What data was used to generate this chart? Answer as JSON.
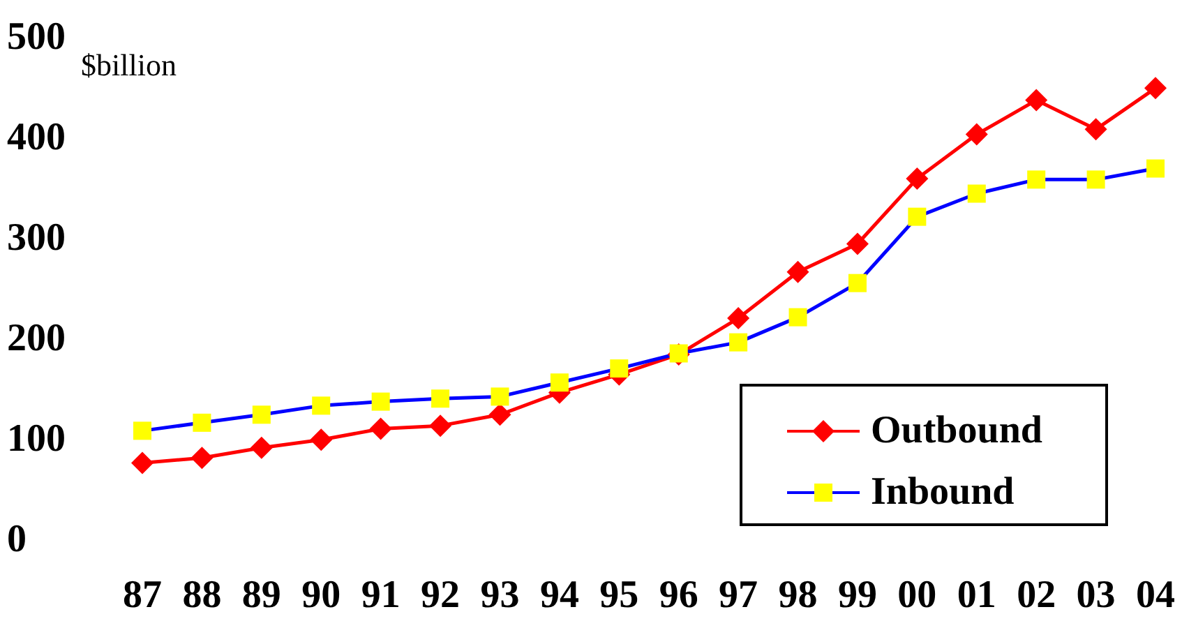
{
  "chart_data": {
    "type": "line",
    "ylabel": "$billion",
    "categories": [
      "87",
      "88",
      "89",
      "90",
      "91",
      "92",
      "93",
      "94",
      "95",
      "96",
      "97",
      "98",
      "99",
      "00",
      "01",
      "02",
      "03",
      "04"
    ],
    "ylim": [
      0,
      500
    ],
    "yticks": [
      0,
      100,
      200,
      300,
      400,
      500
    ],
    "grid": false,
    "legend": "bottom right",
    "line_style": "solid",
    "series": [
      {
        "name": "Outbound",
        "color": "#ff0000",
        "marker": "diamond",
        "values": [
          74,
          79,
          89,
          97,
          108,
          111,
          122,
          144,
          162,
          182,
          218,
          264,
          292,
          357,
          401,
          435,
          406,
          447
        ]
      },
      {
        "name": "Inbound",
        "color": "#0000ff",
        "colors": [
          "#ffff00",
          "#ffff00",
          "#ffff00",
          "#ffff00",
          "#ffff00",
          "#ffff00",
          "#ffff00",
          "#ffff00",
          "#ffff00",
          "#ffff00",
          "#ffff00",
          "#ffff00",
          "#ffff00",
          "#ffff00",
          "#ffff00",
          "#ffff00",
          "#ffff00",
          "#ffff00"
        ],
        "marker": "square",
        "values": [
          106,
          114,
          122,
          131,
          135,
          138,
          140,
          154,
          168,
          183,
          194,
          219,
          253,
          319,
          342,
          356,
          356,
          367
        ]
      }
    ]
  }
}
